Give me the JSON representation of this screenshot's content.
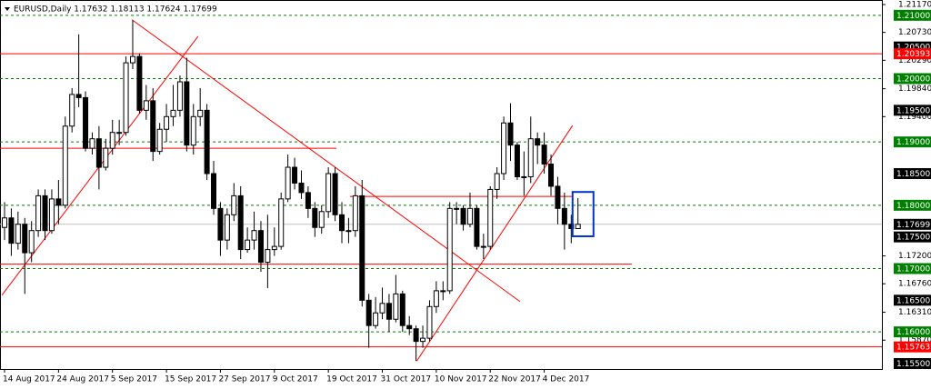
{
  "chart_data": {
    "type": "candlestick",
    "title": "EURUSD,Daily  1.17632 1.18113 1.17624 1.17699",
    "categories": [
      "14 Aug 2017",
      null,
      null,
      null,
      null,
      null,
      null,
      null,
      "24 Aug 2017",
      null,
      null,
      null,
      null,
      null,
      null,
      null,
      "5 Sep 2017",
      null,
      null,
      null,
      null,
      null,
      null,
      null,
      "15 Sep 2017",
      null,
      null,
      null,
      null,
      null,
      null,
      null,
      "27 Sep 2017",
      null,
      null,
      null,
      null,
      null,
      null,
      null,
      "9 Oct 2017",
      null,
      null,
      null,
      null,
      null,
      null,
      null,
      "19 Oct 2017",
      null,
      null,
      null,
      null,
      null,
      null,
      null,
      "31 Oct 2017",
      null,
      null,
      null,
      null,
      null,
      null,
      null,
      "10 Nov 2017",
      null,
      null,
      null,
      null,
      null,
      null,
      null,
      "22 Nov 2017",
      null,
      null,
      null,
      null,
      null,
      null,
      null,
      "4 Dec 2017",
      null,
      null,
      null,
      null,
      null
    ],
    "open": [
      1.1765,
      1.178,
      1.174,
      1.177,
      1.1725,
      1.176,
      1.1815,
      1.176,
      1.181,
      1.18,
      1.1925,
      1.1975,
      1.197,
      1.189,
      1.1905,
      1.186,
      1.189,
      1.1915,
      1.1915,
      1.2025,
      1.2035,
      1.195,
      1.1965,
      1.1885,
      1.192,
      1.194,
      1.195,
      1.1995,
      1.1895,
      1.194,
      1.195,
      1.185,
      1.1795,
      1.1745,
      1.1785,
      1.1815,
      1.173,
      1.1745,
      1.176,
      1.171,
      1.173,
      1.1735,
      1.181,
      1.186,
      1.1835,
      1.182,
      1.1795,
      1.1765,
      1.179,
      1.185,
      1.1785,
      1.176,
      1.176,
      1.1815,
      1.165,
      1.161,
      1.163,
      1.1645,
      1.162,
      1.166,
      1.161,
      1.1605,
      1.1585,
      1.159,
      1.164,
      1.1665,
      1.1665,
      1.1795,
      1.1795,
      1.177,
      1.1795,
      1.1735,
      1.1735,
      1.1825,
      1.185,
      1.193,
      1.1895,
      1.1845,
      1.1845,
      1.1905,
      1.1895,
      1.1865,
      1.183,
      1.1795,
      1.177,
      1.17632
    ],
    "high": [
      1.1805,
      1.1795,
      1.179,
      1.178,
      1.1775,
      1.1825,
      1.1825,
      1.1825,
      1.184,
      1.194,
      1.1985,
      1.207,
      1.198,
      1.1915,
      1.1925,
      1.1905,
      1.1935,
      1.1935,
      1.2035,
      1.2092,
      1.204,
      1.199,
      1.1985,
      1.193,
      1.196,
      1.199,
      1.2005,
      1.2033,
      1.196,
      1.1985,
      1.196,
      1.187,
      1.1805,
      1.1795,
      1.1835,
      1.183,
      1.1765,
      1.179,
      1.1775,
      1.1785,
      1.1765,
      1.182,
      1.188,
      1.1875,
      1.1855,
      1.183,
      1.1805,
      1.18,
      1.186,
      1.186,
      1.1805,
      1.178,
      1.183,
      1.184,
      1.166,
      1.1655,
      1.167,
      1.166,
      1.169,
      1.1665,
      1.1625,
      1.161,
      1.161,
      1.165,
      1.168,
      1.168,
      1.1805,
      1.1805,
      1.18,
      1.182,
      1.18,
      1.1755,
      1.183,
      1.186,
      1.194,
      1.1961,
      1.19,
      1.1885,
      1.194,
      1.1915,
      1.1915,
      1.188,
      1.1845,
      1.182,
      1.1785,
      1.18113
    ],
    "low": [
      1.1745,
      1.172,
      1.173,
      1.166,
      1.171,
      1.175,
      1.1745,
      1.1755,
      1.177,
      1.1795,
      1.1915,
      1.1955,
      1.1885,
      1.188,
      1.1825,
      1.1855,
      1.188,
      1.1895,
      1.191,
      1.2015,
      1.1945,
      1.1935,
      1.187,
      1.188,
      1.19,
      1.1925,
      1.194,
      1.1885,
      1.188,
      1.1925,
      1.184,
      1.1785,
      1.172,
      1.173,
      1.1775,
      1.1715,
      1.1725,
      1.173,
      1.1695,
      1.1669,
      1.172,
      1.173,
      1.1805,
      1.1825,
      1.181,
      1.178,
      1.175,
      1.1755,
      1.178,
      1.1775,
      1.174,
      1.174,
      1.175,
      1.164,
      1.1575,
      1.1605,
      1.162,
      1.16,
      1.1615,
      1.16,
      1.1595,
      1.1554,
      1.1575,
      1.1585,
      1.163,
      1.165,
      1.166,
      1.177,
      1.176,
      1.1765,
      1.173,
      1.1715,
      1.173,
      1.181,
      1.184,
      1.187,
      1.184,
      1.1815,
      1.1835,
      1.1865,
      1.185,
      1.1815,
      1.177,
      1.173,
      1.174,
      1.17624
    ],
    "close": [
      1.178,
      1.174,
      1.177,
      1.1725,
      1.176,
      1.1815,
      1.176,
      1.181,
      1.18,
      1.1925,
      1.1975,
      1.197,
      1.189,
      1.1905,
      1.186,
      1.189,
      1.1915,
      1.1915,
      1.2025,
      1.2035,
      1.195,
      1.1965,
      1.1885,
      1.192,
      1.194,
      1.195,
      1.1995,
      1.1895,
      1.194,
      1.195,
      1.185,
      1.1795,
      1.1745,
      1.1785,
      1.1815,
      1.173,
      1.1745,
      1.176,
      1.171,
      1.173,
      1.1735,
      1.181,
      1.186,
      1.1835,
      1.182,
      1.1795,
      1.1765,
      1.179,
      1.185,
      1.1785,
      1.176,
      1.176,
      1.1815,
      1.165,
      1.161,
      1.163,
      1.1645,
      1.162,
      1.166,
      1.161,
      1.1605,
      1.1585,
      1.159,
      1.164,
      1.1665,
      1.1665,
      1.1795,
      1.1795,
      1.177,
      1.1795,
      1.1735,
      1.1735,
      1.1825,
      1.185,
      1.193,
      1.1895,
      1.1845,
      1.1845,
      1.1905,
      1.1895,
      1.1865,
      1.183,
      1.1795,
      1.177,
      1.17632,
      1.17699
    ],
    "up_color": "#ffffff",
    "down_color": "#000000",
    "ylim": [
      1.155,
      1.2117
    ],
    "yticks": [
      {
        "value": 1.2117,
        "label": "1.21170"
      },
      {
        "value": 1.2073,
        "label": "1.20730"
      },
      {
        "value": 1.2029,
        "label": "1.20290"
      },
      {
        "value": 1.1984,
        "label": "1.19840"
      },
      {
        "value": 1.194,
        "label": "1.19400"
      },
      {
        "value": 1.172,
        "label": "1.17200"
      },
      {
        "value": 1.1676,
        "label": "1.16760"
      },
      {
        "value": 1.1631,
        "label": "1.16310"
      },
      {
        "value": 1.1587,
        "label": "1.15870"
      }
    ],
    "levels": [
      {
        "value": 1.21,
        "label": "1.21000",
        "color": "#008000",
        "line": "dashed"
      },
      {
        "value": 1.205,
        "label": "1.20500",
        "color": "#000000",
        "line": "none"
      },
      {
        "value": 1.20393,
        "label": "1.20393",
        "color": "#ff0000",
        "line": "solid"
      },
      {
        "value": 1.2,
        "label": "1.20000",
        "color": "#008000",
        "line": "dashed"
      },
      {
        "value": 1.195,
        "label": "1.19500",
        "color": "#000000",
        "line": "none"
      },
      {
        "value": 1.19,
        "label": "1.19000",
        "color": "#008000",
        "line": "dashed"
      },
      {
        "value": 1.185,
        "label": "1.18500",
        "color": "#000000",
        "line": "none"
      },
      {
        "value": 1.18,
        "label": "1.18000",
        "color": "#008000",
        "line": "dashed"
      },
      {
        "value": 1.17699,
        "label": "1.17699",
        "color": "#000000",
        "line": "gray"
      },
      {
        "value": 1.175,
        "label": "1.17500",
        "color": "#000000",
        "line": "none"
      },
      {
        "value": 1.17,
        "label": "1.17000",
        "color": "#008000",
        "line": "dashed"
      },
      {
        "value": 1.165,
        "label": "1.16500",
        "color": "#000000",
        "line": "none"
      },
      {
        "value": 1.16,
        "label": "1.16000",
        "color": "#008000",
        "line": "dashed"
      },
      {
        "value": 1.15763,
        "label": "1.15763",
        "color": "#ff0000",
        "line": "solid"
      },
      {
        "value": 1.155,
        "label": "1.15500",
        "color": "#000000",
        "line": "none"
      }
    ],
    "trendlines": [
      {
        "x": [
          -0.4,
          28.7
        ],
        "y": [
          1.1658,
          1.2067
        ],
        "color": "#ff0000"
      },
      {
        "x": [
          18.9,
          76.4
        ],
        "y": [
          1.2093,
          1.1648
        ],
        "color": "#ff0000"
      },
      {
        "x": [
          61.1,
          84.2
        ],
        "y": [
          1.1554,
          1.1926
        ],
        "color": "#ff0000"
      },
      {
        "x": [
          -0.7,
          49.2
        ],
        "y": [
          1.189,
          1.189
        ],
        "color": "#ff0000"
      },
      {
        "x": [
          51.2,
          84.2
        ],
        "y": [
          1.1814,
          1.1814
        ],
        "color": "#ff0000"
      },
      {
        "x": [
          -0.7,
          93
        ],
        "y": [
          1.1707,
          1.1707
        ],
        "color": "#ff0000"
      }
    ],
    "box": {
      "x": [
        84.2,
        87.3
      ],
      "y": [
        1.1821,
        1.1751
      ],
      "color": "#0033cc"
    }
  }
}
